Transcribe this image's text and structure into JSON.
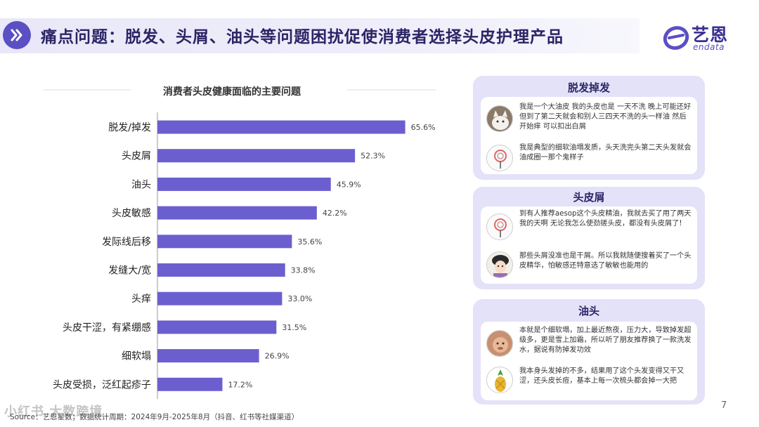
{
  "header": {
    "title": "痛点问题：脱发、头屑、油头等问题困扰促使消费者选择头皮护理产品",
    "brand_cn": "艺恩",
    "brand_en": "endata"
  },
  "chart_data": {
    "type": "bar",
    "orientation": "horizontal",
    "title": "消费者头皮健康面临的主要问题",
    "categories": [
      "脱发/掉发",
      "头皮屑",
      "油头",
      "头皮敏感",
      "发际线后移",
      "发缝大/宽",
      "头痒",
      "头皮干涩，有紧绷感",
      "细软塌",
      "头皮受损，泛红起疹子"
    ],
    "values": [
      65.6,
      52.3,
      45.9,
      42.2,
      35.6,
      33.8,
      33.0,
      31.5,
      26.9,
      17.2
    ],
    "value_labels": [
      "65.6%",
      "52.3%",
      "45.9%",
      "42.2%",
      "35.6%",
      "33.8%",
      "33.0%",
      "31.5%",
      "26.9%",
      "17.2%"
    ],
    "unit": "%",
    "bar_color": "#6b5fcf",
    "xlim": [
      0,
      100
    ],
    "grid": false,
    "legend": "none"
  },
  "panels": [
    {
      "heading": "脱发掉发",
      "quotes": [
        {
          "avatar_icon": "cat-avatar-icon",
          "text": "我是一个大油皮 我的头皮也是 一天不洗 晚上可能还好 但到了第二天就会和别人三四天不洗的头一样油 然后开始痒 可以扣出白屑"
        },
        {
          "avatar_icon": "lollipop-avatar-icon",
          "text": "我是典型的细软油塌发质，头天洗完头第二天头发就会油成圈一那个鬼样子"
        }
      ]
    },
    {
      "heading": "头皮屑",
      "quotes": [
        {
          "avatar_icon": "lollipop-avatar-icon",
          "text": "到有人推荐aesop这个头皮精油，我就去买了用了两天          我的天啊          无论我怎么使劲搓头皮，都没有头皮屑了!"
        },
        {
          "avatar_icon": "cartoon-girl-avatar-icon",
          "text": "那些头屑没准也是干屑。所以我就随便搜着买了一个头皮精华，怕敏感还特意选了敏敏也能用的"
        }
      ]
    },
    {
      "heading": "油头",
      "quotes": [
        {
          "avatar_icon": "monkey-avatar-icon",
          "text": "本就是个细软塌，加上最近熬夜，压力大，导致掉发超级多，更是雪上加霜，所以听了朋友推荐换了一款洗发水，据说有防掉发功效"
        },
        {
          "avatar_icon": "pineapple-avatar-icon",
          "text": "我本身头发掉的不多，结果用了这个头发变得又干又涩，还头皮长痘，基本上每一次梳头都会掉一大把"
        }
      ]
    }
  ],
  "footer": {
    "source": "Source：艺恩星数；数据统计周期：2024年9月-2025年8月（抖音、红书等社媒渠道）",
    "watermark": "小红书 大数跨境",
    "page_number": "7"
  },
  "colors": {
    "accent": "#5b4fc4",
    "bar": "#6b5fcf",
    "panel_bg": "#e3e2f8",
    "title_text": "#2b2466"
  }
}
